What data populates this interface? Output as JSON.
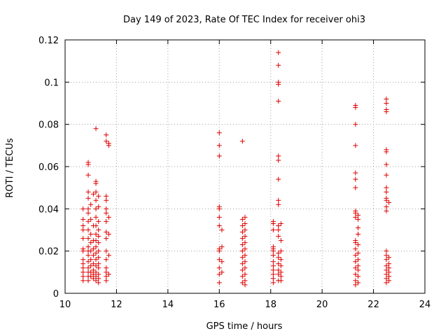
{
  "chart_data": {
    "type": "scatter",
    "title": "Day 149 of 2023, Rate Of TEC Index for receiver ohi3",
    "xlabel": "GPS time / hours",
    "ylabel": "ROTI / TECUs",
    "xlim": [
      10,
      24
    ],
    "ylim": [
      0,
      0.12
    ],
    "xticks": [
      "10",
      "12",
      "14",
      "16",
      "18",
      "20",
      "22",
      "24"
    ],
    "yticks": [
      "0",
      "0.02",
      "0.04",
      "0.06",
      "0.08",
      "0.1",
      "0.12"
    ],
    "grid": true,
    "marker": "+",
    "color": "#e00000",
    "series": [
      {
        "points": [
          [
            10.7,
            0.04
          ],
          [
            10.7,
            0.035
          ],
          [
            10.7,
            0.032
          ],
          [
            10.7,
            0.03
          ],
          [
            10.7,
            0.026
          ],
          [
            10.7,
            0.021
          ],
          [
            10.7,
            0.02
          ],
          [
            10.7,
            0.016
          ],
          [
            10.7,
            0.014
          ],
          [
            10.7,
            0.012
          ],
          [
            10.7,
            0.01
          ],
          [
            10.7,
            0.008
          ],
          [
            10.7,
            0.006
          ],
          [
            10.9,
            0.062
          ],
          [
            10.9,
            0.061
          ],
          [
            10.9,
            0.056
          ],
          [
            10.9,
            0.048
          ],
          [
            10.9,
            0.045
          ],
          [
            10.9,
            0.04
          ],
          [
            10.9,
            0.038
          ],
          [
            10.9,
            0.034
          ],
          [
            10.9,
            0.03
          ],
          [
            10.9,
            0.026
          ],
          [
            10.9,
            0.022
          ],
          [
            10.9,
            0.02
          ],
          [
            10.9,
            0.018
          ],
          [
            10.9,
            0.015
          ],
          [
            10.9,
            0.012
          ],
          [
            10.9,
            0.01
          ],
          [
            10.9,
            0.008
          ],
          [
            10.9,
            0.006
          ],
          [
            11.0,
            0.042
          ],
          [
            11.0,
            0.035
          ],
          [
            11.0,
            0.028
          ],
          [
            11.0,
            0.024
          ],
          [
            11.0,
            0.02
          ],
          [
            11.0,
            0.016
          ],
          [
            11.0,
            0.013
          ],
          [
            11.0,
            0.01
          ],
          [
            11.0,
            0.008
          ],
          [
            11.1,
            0.047
          ],
          [
            11.1,
            0.032
          ],
          [
            11.1,
            0.025
          ],
          [
            11.1,
            0.021
          ],
          [
            11.1,
            0.018
          ],
          [
            11.1,
            0.014
          ],
          [
            11.1,
            0.011
          ],
          [
            11.1,
            0.009
          ],
          [
            11.1,
            0.007
          ],
          [
            11.2,
            0.078
          ],
          [
            11.2,
            0.053
          ],
          [
            11.2,
            0.052
          ],
          [
            11.2,
            0.048
          ],
          [
            11.2,
            0.044
          ],
          [
            11.2,
            0.04
          ],
          [
            11.2,
            0.036
          ],
          [
            11.2,
            0.032
          ],
          [
            11.2,
            0.028
          ],
          [
            11.2,
            0.025
          ],
          [
            11.2,
            0.022
          ],
          [
            11.2,
            0.019
          ],
          [
            11.2,
            0.016
          ],
          [
            11.2,
            0.013
          ],
          [
            11.2,
            0.01
          ],
          [
            11.2,
            0.008
          ],
          [
            11.2,
            0.006
          ],
          [
            11.3,
            0.046
          ],
          [
            11.3,
            0.041
          ],
          [
            11.3,
            0.034
          ],
          [
            11.3,
            0.03
          ],
          [
            11.3,
            0.027
          ],
          [
            11.3,
            0.024
          ],
          [
            11.3,
            0.02
          ],
          [
            11.3,
            0.017
          ],
          [
            11.3,
            0.014
          ],
          [
            11.3,
            0.012
          ],
          [
            11.3,
            0.009
          ],
          [
            11.3,
            0.007
          ],
          [
            11.3,
            0.005
          ],
          [
            11.6,
            0.075
          ],
          [
            11.6,
            0.072
          ],
          [
            11.6,
            0.046
          ],
          [
            11.6,
            0.044
          ],
          [
            11.6,
            0.04
          ],
          [
            11.6,
            0.038
          ],
          [
            11.6,
            0.034
          ],
          [
            11.6,
            0.029
          ],
          [
            11.6,
            0.026
          ],
          [
            11.6,
            0.02
          ],
          [
            11.6,
            0.016
          ],
          [
            11.6,
            0.012
          ],
          [
            11.6,
            0.01
          ],
          [
            11.6,
            0.008
          ],
          [
            11.6,
            0.006
          ],
          [
            11.7,
            0.071
          ],
          [
            11.7,
            0.07
          ],
          [
            11.7,
            0.036
          ],
          [
            11.7,
            0.028
          ],
          [
            11.7,
            0.018
          ],
          [
            11.7,
            0.009
          ],
          [
            16.0,
            0.076
          ],
          [
            16.0,
            0.07
          ],
          [
            16.0,
            0.065
          ],
          [
            16.0,
            0.041
          ],
          [
            16.0,
            0.04
          ],
          [
            16.0,
            0.036
          ],
          [
            16.0,
            0.032
          ],
          [
            16.0,
            0.021
          ],
          [
            16.0,
            0.02
          ],
          [
            16.0,
            0.016
          ],
          [
            16.0,
            0.012
          ],
          [
            16.0,
            0.009
          ],
          [
            16.0,
            0.005
          ],
          [
            16.1,
            0.03
          ],
          [
            16.1,
            0.022
          ],
          [
            16.1,
            0.015
          ],
          [
            16.1,
            0.01
          ],
          [
            16.9,
            0.072
          ],
          [
            16.9,
            0.035
          ],
          [
            16.9,
            0.032
          ],
          [
            16.9,
            0.029
          ],
          [
            16.9,
            0.026
          ],
          [
            16.9,
            0.023
          ],
          [
            16.9,
            0.02
          ],
          [
            16.9,
            0.017
          ],
          [
            16.9,
            0.014
          ],
          [
            16.9,
            0.011
          ],
          [
            16.9,
            0.008
          ],
          [
            16.9,
            0.005
          ],
          [
            17.0,
            0.036
          ],
          [
            17.0,
            0.033
          ],
          [
            17.0,
            0.03
          ],
          [
            17.0,
            0.027
          ],
          [
            17.0,
            0.024
          ],
          [
            17.0,
            0.021
          ],
          [
            17.0,
            0.018
          ],
          [
            17.0,
            0.015
          ],
          [
            17.0,
            0.012
          ],
          [
            17.0,
            0.009
          ],
          [
            17.0,
            0.006
          ],
          [
            17.0,
            0.004
          ],
          [
            18.1,
            0.034
          ],
          [
            18.1,
            0.033
          ],
          [
            18.1,
            0.03
          ],
          [
            18.1,
            0.022
          ],
          [
            18.1,
            0.021
          ],
          [
            18.1,
            0.02
          ],
          [
            18.1,
            0.018
          ],
          [
            18.1,
            0.015
          ],
          [
            18.1,
            0.013
          ],
          [
            18.1,
            0.011
          ],
          [
            18.1,
            0.009
          ],
          [
            18.1,
            0.007
          ],
          [
            18.1,
            0.005
          ],
          [
            18.3,
            0.114
          ],
          [
            18.3,
            0.108
          ],
          [
            18.3,
            0.1
          ],
          [
            18.3,
            0.099
          ],
          [
            18.3,
            0.091
          ],
          [
            18.3,
            0.065
          ],
          [
            18.3,
            0.063
          ],
          [
            18.3,
            0.054
          ],
          [
            18.3,
            0.044
          ],
          [
            18.3,
            0.042
          ],
          [
            18.3,
            0.032
          ],
          [
            18.3,
            0.03
          ],
          [
            18.3,
            0.027
          ],
          [
            18.3,
            0.019
          ],
          [
            18.3,
            0.017
          ],
          [
            18.3,
            0.014
          ],
          [
            18.3,
            0.011
          ],
          [
            18.3,
            0.009
          ],
          [
            18.3,
            0.006
          ],
          [
            18.4,
            0.033
          ],
          [
            18.4,
            0.025
          ],
          [
            18.4,
            0.02
          ],
          [
            18.4,
            0.016
          ],
          [
            18.4,
            0.013
          ],
          [
            18.4,
            0.01
          ],
          [
            18.4,
            0.008
          ],
          [
            18.4,
            0.006
          ],
          [
            21.3,
            0.089
          ],
          [
            21.3,
            0.088
          ],
          [
            21.3,
            0.08
          ],
          [
            21.3,
            0.07
          ],
          [
            21.3,
            0.057
          ],
          [
            21.3,
            0.054
          ],
          [
            21.3,
            0.05
          ],
          [
            21.3,
            0.039
          ],
          [
            21.3,
            0.038
          ],
          [
            21.3,
            0.036
          ],
          [
            21.3,
            0.025
          ],
          [
            21.3,
            0.024
          ],
          [
            21.3,
            0.021
          ],
          [
            21.3,
            0.018
          ],
          [
            21.3,
            0.015
          ],
          [
            21.3,
            0.012
          ],
          [
            21.3,
            0.009
          ],
          [
            21.3,
            0.006
          ],
          [
            21.3,
            0.004
          ],
          [
            21.4,
            0.037
          ],
          [
            21.4,
            0.035
          ],
          [
            21.4,
            0.031
          ],
          [
            21.4,
            0.028
          ],
          [
            21.4,
            0.023
          ],
          [
            21.4,
            0.019
          ],
          [
            21.4,
            0.016
          ],
          [
            21.4,
            0.013
          ],
          [
            21.4,
            0.011
          ],
          [
            21.4,
            0.008
          ],
          [
            21.4,
            0.005
          ],
          [
            22.5,
            0.092
          ],
          [
            22.5,
            0.09
          ],
          [
            22.5,
            0.087
          ],
          [
            22.5,
            0.086
          ],
          [
            22.5,
            0.068
          ],
          [
            22.5,
            0.067
          ],
          [
            22.5,
            0.061
          ],
          [
            22.5,
            0.056
          ],
          [
            22.5,
            0.05
          ],
          [
            22.5,
            0.048
          ],
          [
            22.5,
            0.045
          ],
          [
            22.5,
            0.044
          ],
          [
            22.5,
            0.041
          ],
          [
            22.5,
            0.039
          ],
          [
            22.5,
            0.02
          ],
          [
            22.5,
            0.018
          ],
          [
            22.5,
            0.016
          ],
          [
            22.5,
            0.013
          ],
          [
            22.5,
            0.011
          ],
          [
            22.5,
            0.009
          ],
          [
            22.5,
            0.007
          ],
          [
            22.5,
            0.005
          ],
          [
            22.6,
            0.043
          ],
          [
            22.6,
            0.017
          ],
          [
            22.6,
            0.014
          ],
          [
            22.6,
            0.012
          ],
          [
            22.6,
            0.01
          ],
          [
            22.6,
            0.008
          ],
          [
            22.6,
            0.006
          ]
        ]
      }
    ]
  }
}
